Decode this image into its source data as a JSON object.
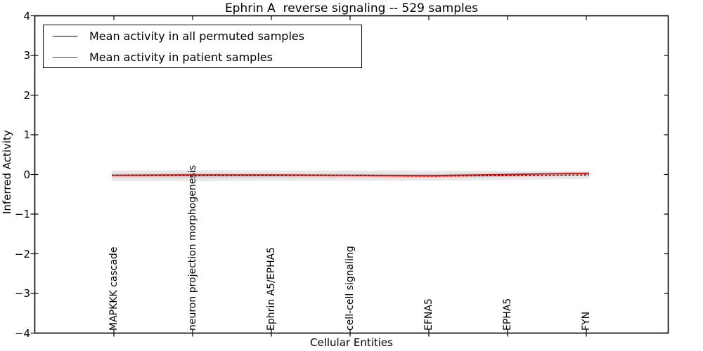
{
  "title": "Ephrin A  reverse signaling -- 529 samples",
  "background_color": "#ffffff",
  "axes": {
    "xlabel": "Cellular Entities",
    "ylabel": "Inferred Activity",
    "ytick_labels": [
      "4",
      "3",
      "2",
      "1",
      "0",
      "−1",
      "−2",
      "−3",
      "−4"
    ],
    "ytick_values": [
      4,
      3,
      2,
      1,
      0,
      -1,
      -2,
      -3,
      -4
    ]
  },
  "legend": {
    "items": [
      {
        "label": "Mean activity in all permuted samples",
        "color": "#000000",
        "style": "solid"
      },
      {
        "label": "Mean activity in patient samples",
        "color": "#ff0000",
        "style": "solid"
      }
    ],
    "position": "upper left"
  },
  "chart_data": {
    "type": "line",
    "title": "Ephrin A  reverse signaling -- 529 samples",
    "xlabel": "Cellular Entities",
    "ylabel": "Inferred Activity",
    "ylim": [
      -4,
      4
    ],
    "grid": false,
    "legend_position": "upper left",
    "categories": [
      "MAPKKK cascade",
      "neuron projection morphogenesis",
      "Ephrin A5/EPHA5",
      "cell-cell signaling",
      "EFNA5",
      "EPHA5",
      "FYN"
    ],
    "series": [
      {
        "name": "Mean activity in all permuted samples",
        "color": "#000000",
        "style": "dashed",
        "values": [
          -0.03,
          -0.03,
          -0.03,
          -0.03,
          -0.04,
          -0.03,
          -0.01
        ]
      },
      {
        "name": "Mean activity in patient samples",
        "color": "#ff0000",
        "style": "solid",
        "values": [
          -0.02,
          -0.01,
          -0.01,
          -0.02,
          -0.03,
          0.0,
          0.03
        ]
      }
    ],
    "bands": [
      {
        "name": "permuted-std-outer",
        "color": "#000000",
        "opacity": 0.09,
        "upper": [
          0.1,
          0.11,
          0.1,
          0.1,
          0.09,
          0.09,
          0.08
        ],
        "lower": [
          -0.16,
          -0.17,
          -0.16,
          -0.16,
          -0.16,
          -0.14,
          -0.11
        ]
      },
      {
        "name": "permuted-std-inner",
        "color": "#000000",
        "opacity": 0.1,
        "upper": [
          0.02,
          0.03,
          0.02,
          0.02,
          0.01,
          0.03,
          0.05
        ],
        "lower": [
          -0.08,
          -0.09,
          -0.08,
          -0.08,
          -0.09,
          -0.06,
          -0.04
        ]
      }
    ]
  }
}
